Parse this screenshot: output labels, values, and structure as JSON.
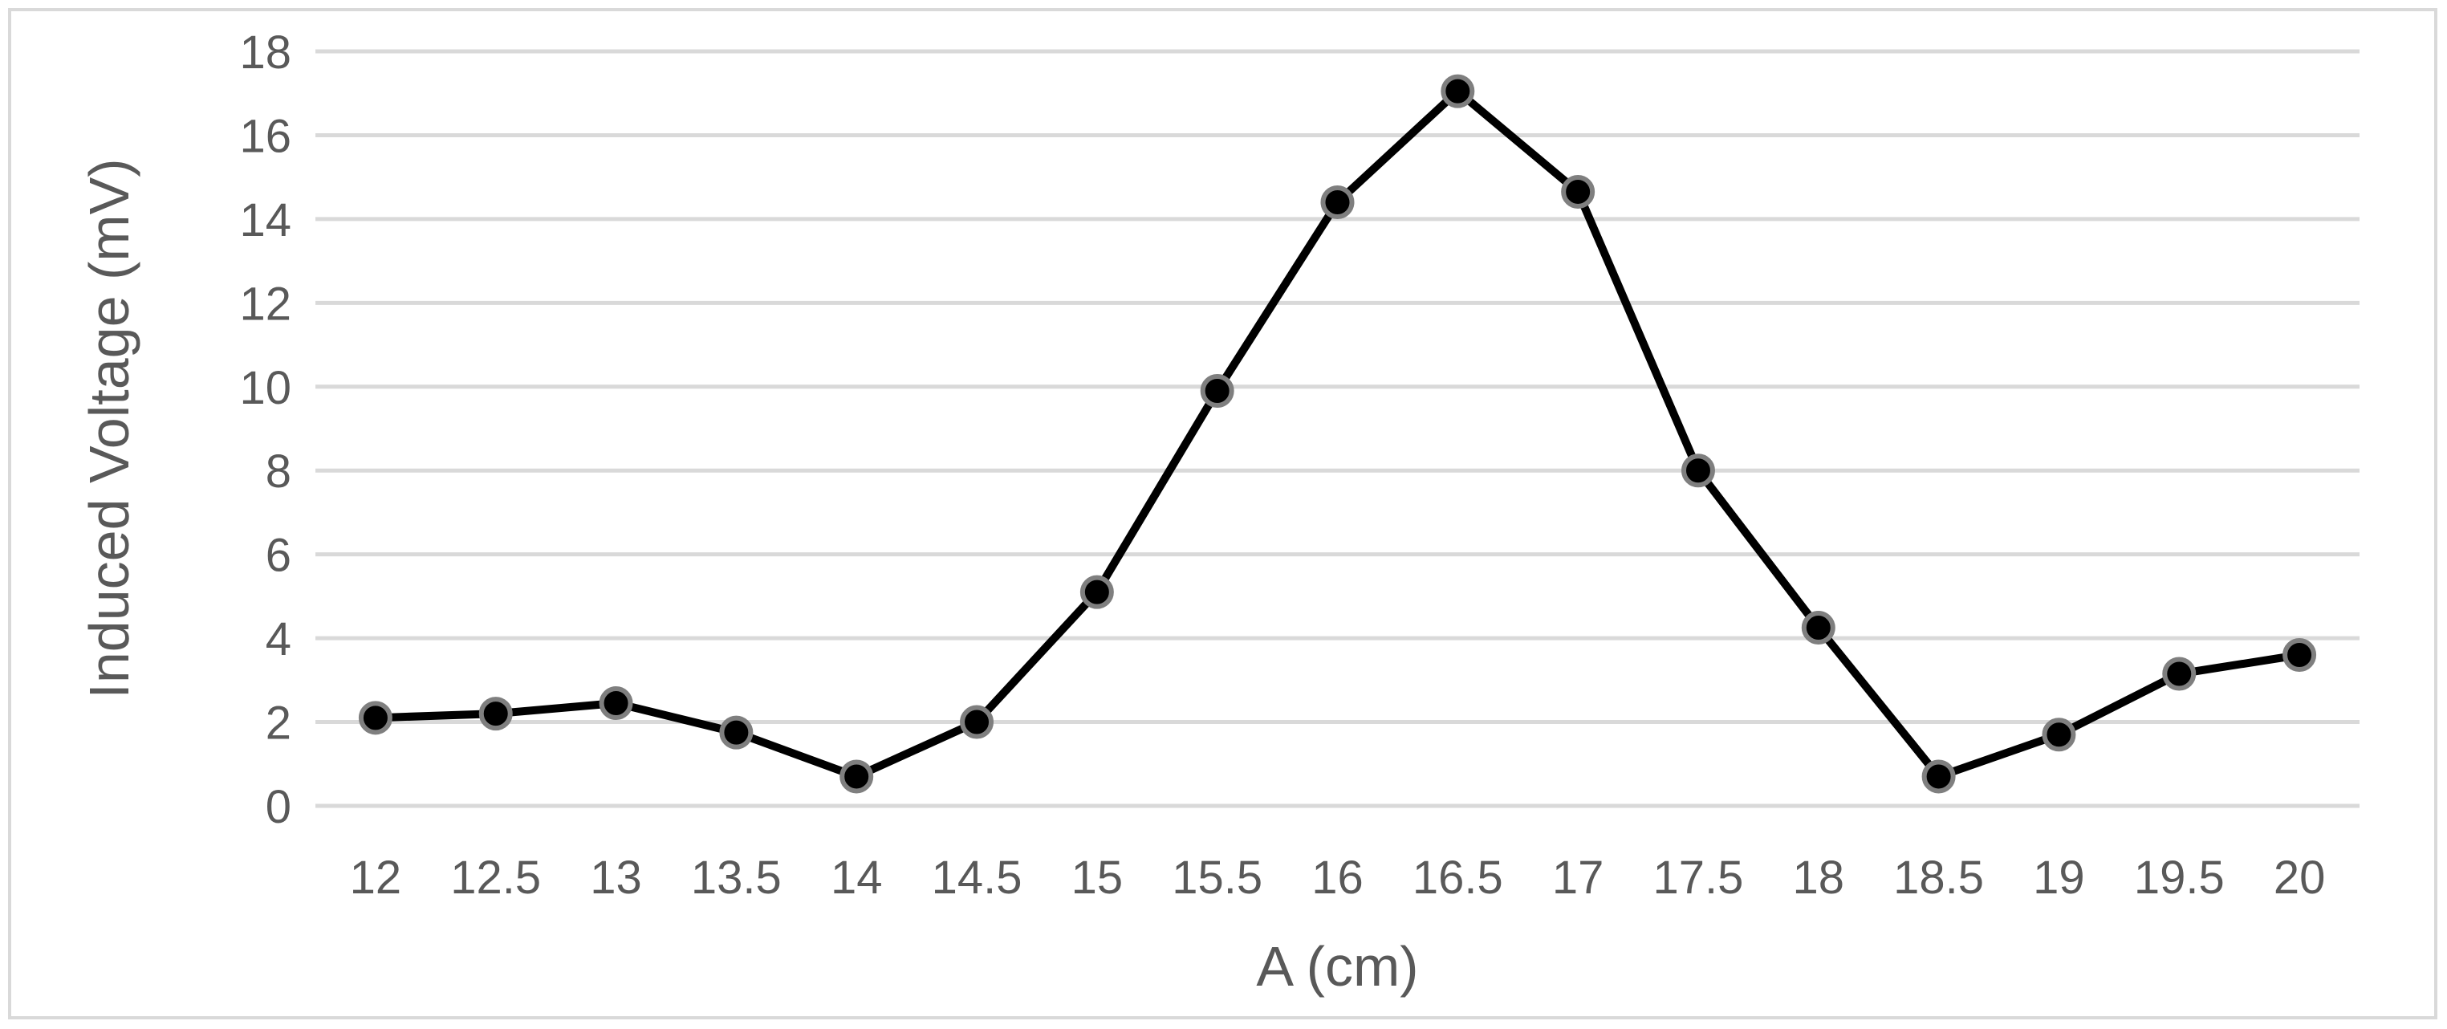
{
  "chart_data": {
    "type": "line",
    "title": "",
    "xlabel": "A (cm)",
    "ylabel": "Induced Voltage (mV)",
    "ylim": [
      0,
      18
    ],
    "yticks": [
      0,
      2,
      4,
      6,
      8,
      10,
      12,
      14,
      16,
      18
    ],
    "categories": [
      "12",
      "12.5",
      "13",
      "13.5",
      "14",
      "14.5",
      "15",
      "15.5",
      "16",
      "16.5",
      "17",
      "17.5",
      "18",
      "18.5",
      "19",
      "19.5",
      "20"
    ],
    "series": [
      {
        "values": [
          2.1,
          2.2,
          2.45,
          1.75,
          0.7,
          2.0,
          5.1,
          9.9,
          14.4,
          17.05,
          14.65,
          8.0,
          4.25,
          0.7,
          1.7,
          3.15,
          3.6
        ]
      }
    ],
    "grid": true,
    "legend": "none",
    "colors": {
      "line": "#000000",
      "marker_fill": "#000000",
      "marker_edge": "#7f7f7f",
      "grid": "#d9d9d9",
      "text": "#595959"
    }
  }
}
